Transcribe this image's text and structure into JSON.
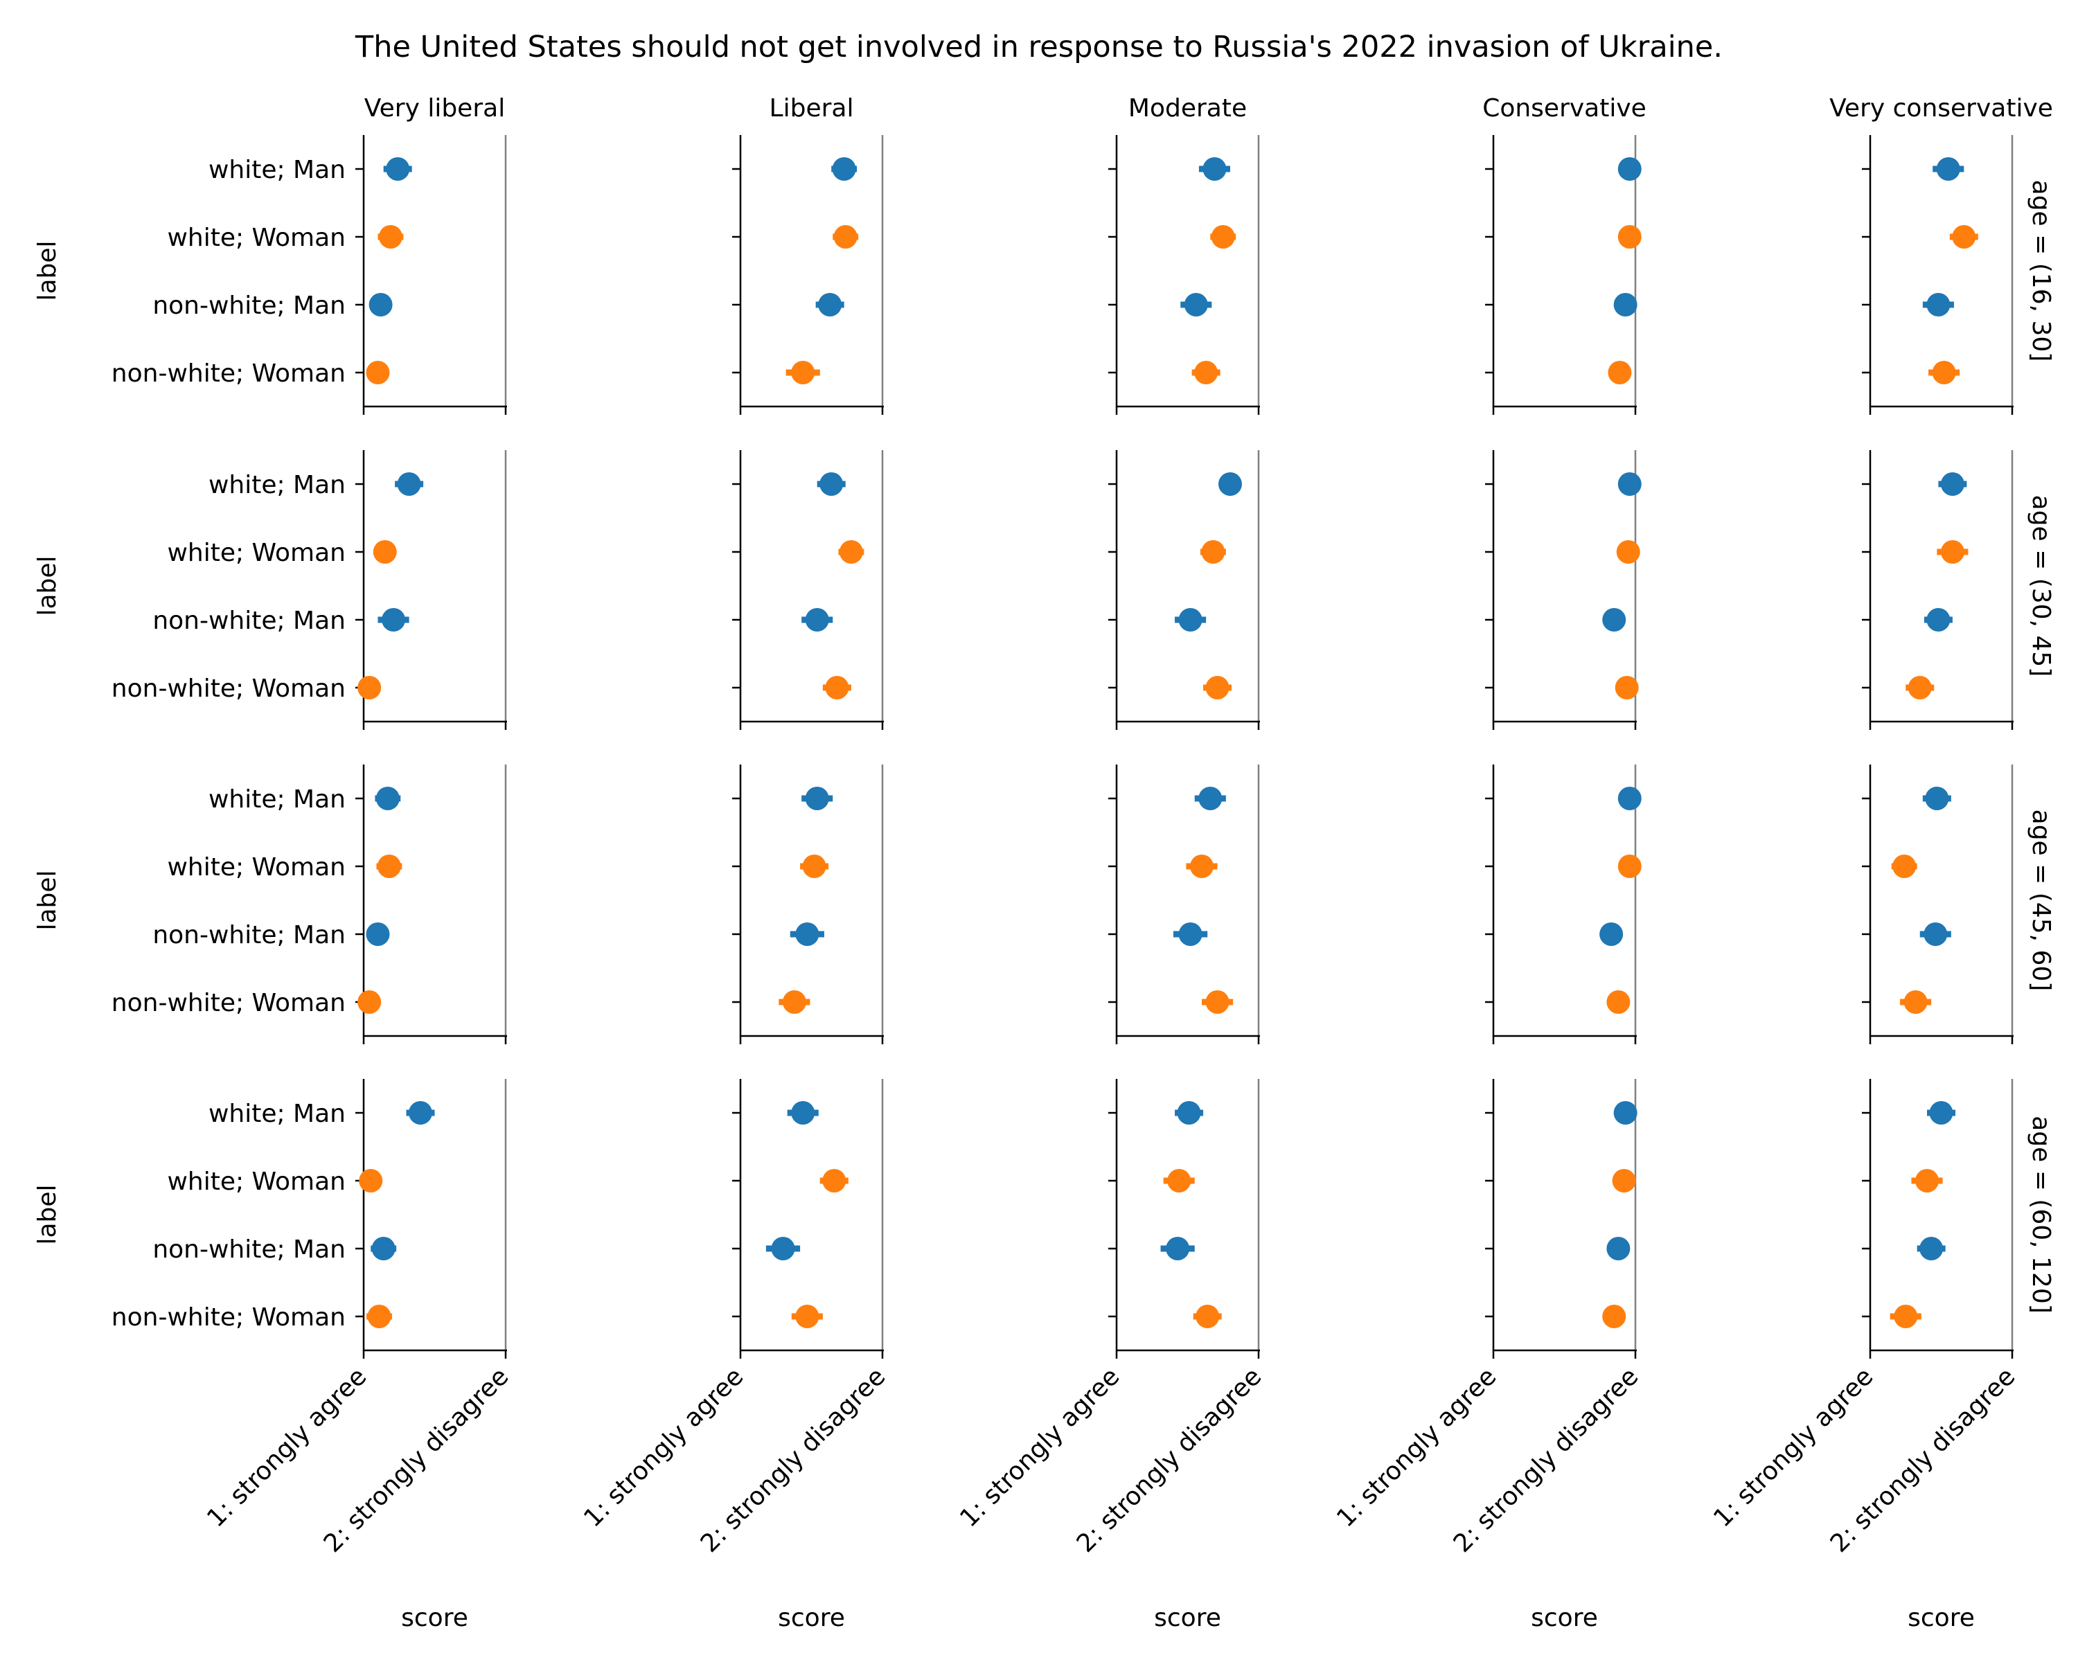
{
  "chart_data": {
    "type": "scatter",
    "title": "The United States should not get involved in response to Russia's 2022 invasion of Ukraine.",
    "columns": [
      "Very liberal",
      "Liberal",
      "Moderate",
      "Conservative",
      "Very conservative"
    ],
    "rows": [
      "age = (16, 30]",
      "age = (30, 45]",
      "age = (45, 60]",
      "age = (60, 120]"
    ],
    "categories": [
      "white; Man",
      "white; Woman",
      "non-white; Man",
      "non-white; Woman"
    ],
    "ylabel": "label",
    "xlabel": "score",
    "x_ticks": [
      "1: strongly agree",
      "2: strongly disagree"
    ],
    "xlim": [
      1,
      2
    ],
    "series_colors": {
      "Man": "#1f77b4",
      "Woman": "#ff7f0e"
    },
    "reference_line": 2,
    "panels": [
      [
        {
          "values": [
            1.24,
            1.19,
            1.12,
            1.1
          ],
          "err": [
            0.1,
            0.09,
            0.08,
            0.05
          ]
        },
        {
          "values": [
            1.73,
            1.74,
            1.63,
            1.44
          ],
          "err": [
            0.09,
            0.09,
            0.1,
            0.12
          ]
        },
        {
          "values": [
            1.69,
            1.75,
            1.56,
            1.63
          ],
          "err": [
            0.11,
            0.09,
            0.11,
            0.1
          ]
        },
        {
          "values": [
            1.96,
            1.96,
            1.93,
            1.89
          ],
          "err": [
            0.03,
            0.03,
            0.03,
            0.05
          ]
        },
        {
          "values": [
            1.55,
            1.66,
            1.48,
            1.52
          ],
          "err": [
            0.11,
            0.1,
            0.11,
            0.11
          ]
        }
      ],
      [
        {
          "values": [
            1.32,
            1.15,
            1.21,
            1.04
          ],
          "err": [
            0.1,
            0.07,
            0.11,
            0.03
          ]
        },
        {
          "values": [
            1.64,
            1.78,
            1.54,
            1.68
          ],
          "err": [
            0.1,
            0.09,
            0.11,
            0.1
          ]
        },
        {
          "values": [
            1.8,
            1.68,
            1.52,
            1.71
          ],
          "err": [
            0.08,
            0.09,
            0.11,
            0.1
          ]
        },
        {
          "values": [
            1.96,
            1.95,
            1.85,
            1.94
          ],
          "err": [
            0.03,
            0.04,
            0.04,
            0.04
          ]
        },
        {
          "values": [
            1.58,
            1.58,
            1.48,
            1.35
          ],
          "err": [
            0.1,
            0.11,
            0.1,
            0.1
          ]
        }
      ],
      [
        {
          "values": [
            1.17,
            1.18,
            1.1,
            1.04
          ],
          "err": [
            0.09,
            0.09,
            0.06,
            0.03
          ]
        },
        {
          "values": [
            1.54,
            1.52,
            1.47,
            1.38
          ],
          "err": [
            0.11,
            0.1,
            0.12,
            0.11
          ]
        },
        {
          "values": [
            1.66,
            1.6,
            1.52,
            1.71
          ],
          "err": [
            0.11,
            0.11,
            0.12,
            0.11
          ]
        },
        {
          "values": [
            1.96,
            1.96,
            1.83,
            1.88
          ],
          "err": [
            0.03,
            0.03,
            0.07,
            0.05
          ]
        },
        {
          "values": [
            1.47,
            1.24,
            1.46,
            1.32
          ],
          "err": [
            0.1,
            0.09,
            0.11,
            0.11
          ]
        }
      ],
      [
        {
          "values": [
            1.4,
            1.05,
            1.14,
            1.11
          ],
          "err": [
            0.1,
            0.03,
            0.09,
            0.09
          ]
        },
        {
          "values": [
            1.44,
            1.66,
            1.3,
            1.47
          ],
          "err": [
            0.11,
            0.1,
            0.12,
            0.11
          ]
        },
        {
          "values": [
            1.51,
            1.44,
            1.43,
            1.64
          ],
          "err": [
            0.1,
            0.11,
            0.12,
            0.1
          ]
        },
        {
          "values": [
            1.93,
            1.92,
            1.88,
            1.85
          ],
          "err": [
            0.03,
            0.03,
            0.04,
            0.05
          ]
        },
        {
          "values": [
            1.5,
            1.4,
            1.43,
            1.25
          ],
          "err": [
            0.1,
            0.11,
            0.1,
            0.11
          ]
        }
      ]
    ]
  }
}
